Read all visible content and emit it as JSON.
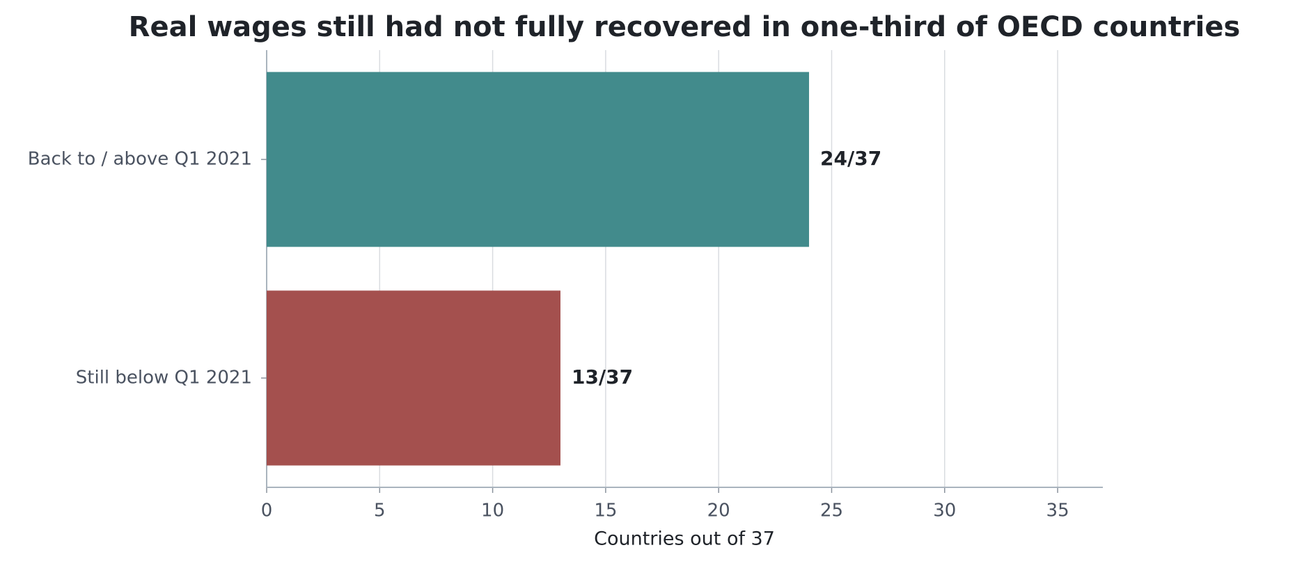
{
  "chart_data": {
    "type": "barh",
    "title": "Real wages still had not fully recovered in one-third of OECD countries",
    "xlabel": "Countries out of 37",
    "categories": [
      "Back to / above Q1 2021",
      "Still below Q1 2021"
    ],
    "values": [
      24,
      13
    ],
    "value_labels": [
      "24/37",
      "13/37"
    ],
    "colors": [
      "#428b8c",
      "#a4504e"
    ],
    "xlim": [
      0,
      37
    ],
    "xticks": [
      0,
      5,
      10,
      15,
      20,
      25,
      30,
      35
    ],
    "grid": true
  }
}
